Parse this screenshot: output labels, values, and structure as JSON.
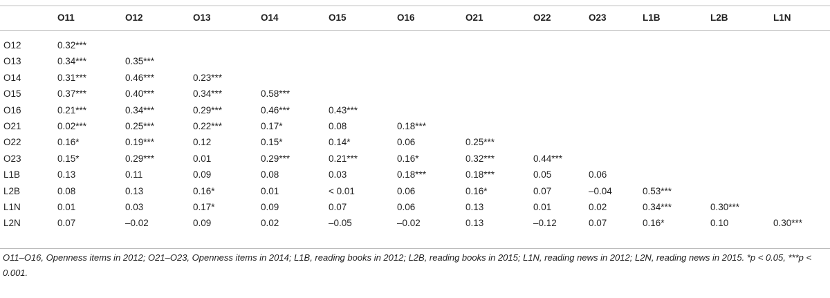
{
  "table": {
    "columns": [
      "O11",
      "O12",
      "O13",
      "O14",
      "O15",
      "O16",
      "O21",
      "O22",
      "O23",
      "L1B",
      "L2B",
      "L1N"
    ],
    "rows": [
      {
        "label": "O12",
        "cells": [
          "0.32***"
        ]
      },
      {
        "label": "O13",
        "cells": [
          "0.34***",
          "0.35***"
        ]
      },
      {
        "label": "O14",
        "cells": [
          "0.31***",
          "0.46***",
          "0.23***"
        ]
      },
      {
        "label": "O15",
        "cells": [
          "0.37***",
          "0.40***",
          "0.34***",
          "0.58***"
        ]
      },
      {
        "label": "O16",
        "cells": [
          "0.21***",
          "0.34***",
          "0.29***",
          "0.46***",
          "0.43***"
        ]
      },
      {
        "label": "O21",
        "cells": [
          "0.02***",
          "0.25***",
          "0.22***",
          "0.17*",
          "0.08",
          "0.18***"
        ]
      },
      {
        "label": "O22",
        "cells": [
          "0.16*",
          "0.19***",
          "0.12",
          "0.15*",
          "0.14*",
          "0.06",
          "0.25***"
        ]
      },
      {
        "label": "O23",
        "cells": [
          "0.15*",
          "0.29***",
          "0.01",
          "0.29***",
          "0.21***",
          "0.16*",
          "0.32***",
          "0.44***"
        ]
      },
      {
        "label": "L1B",
        "cells": [
          "0.13",
          "0.11",
          "0.09",
          "0.08",
          "0.03",
          "0.18***",
          "0.18***",
          "0.05",
          "0.06"
        ]
      },
      {
        "label": "L2B",
        "cells": [
          "0.08",
          "0.13",
          "0.16*",
          "0.01",
          "< 0.01",
          "0.06",
          "0.16*",
          "0.07",
          "–0.04",
          "0.53***"
        ]
      },
      {
        "label": "L1N",
        "cells": [
          "0.01",
          "0.03",
          "0.17*",
          "0.09",
          "0.07",
          "0.06",
          "0.13",
          "0.01",
          "0.02",
          "0.34***",
          "0.30***"
        ]
      },
      {
        "label": "L2N",
        "cells": [
          "0.07",
          "–0.02",
          "0.09",
          "0.02",
          "–0.05",
          "–0.02",
          "0.13",
          "–0.12",
          "0.07",
          "0.16*",
          "0.10",
          "0.30***"
        ]
      }
    ],
    "footnote": "O11–O16, Openness items in 2012; O21–O23, Openness items in 2014; L1B, reading books in 2012; L2B, reading books in 2015; L1N, reading news in 2012; L2N, reading news in 2015. *p < 0.05, ***p < 0.001."
  }
}
